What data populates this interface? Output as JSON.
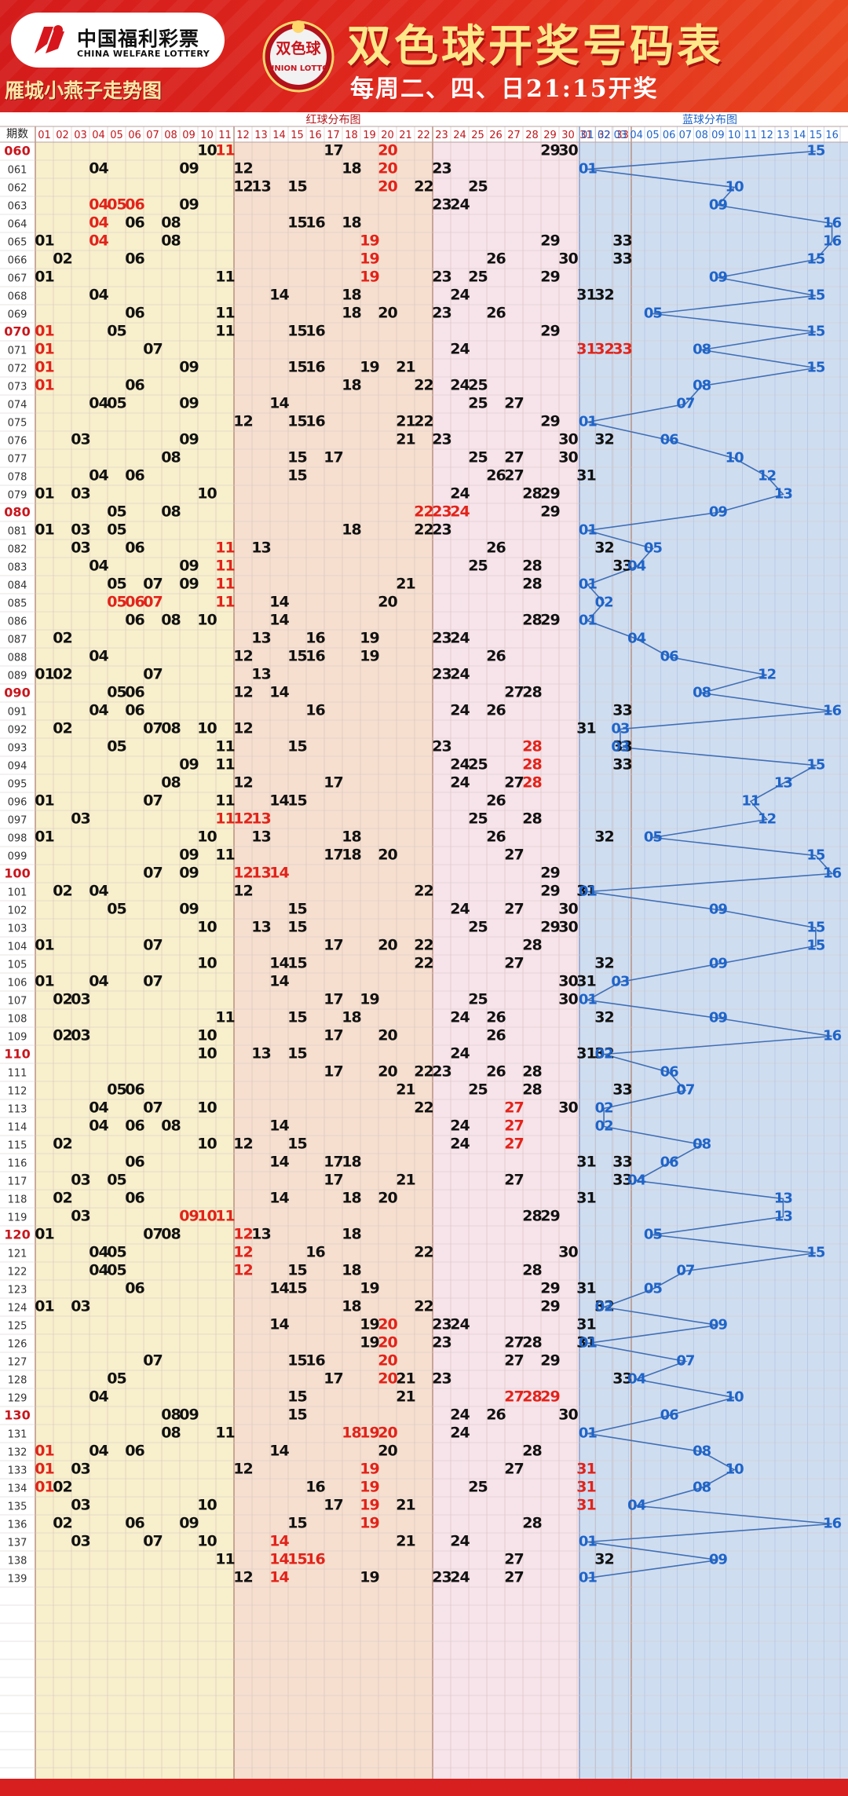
{
  "header": {
    "logo_cn": "中国福利彩票",
    "logo_en": "CHINA WELFARE LOTTERY",
    "ball_logo_cn": "双色球",
    "ball_logo_en": "UNION LOTTO",
    "title": "双色球开奖号码表",
    "schedule": "每周二、四、日21:15开奖",
    "subtitle": "雁城小燕子走势图"
  },
  "colors": {
    "header_red": "#d41b1b",
    "title_gold": "#ffe88a",
    "red_zone_1": "#f8efcc",
    "red_zone_2": "#f6dfcf",
    "red_zone_3": "#f7e3ea",
    "blue_zone": "#cfddf0",
    "blue_number": "#1f64c8",
    "repeat_red": "#e2231a",
    "number_black": "#111111"
  },
  "chart_data": {
    "type": "table",
    "period_header": "期数",
    "red_header": "红球分布图",
    "blue_header": "蓝球分布图",
    "red_columns": [
      "01",
      "02",
      "03",
      "04",
      "05",
      "06",
      "07",
      "08",
      "09",
      "10",
      "11",
      "12",
      "13",
      "14",
      "15",
      "16",
      "17",
      "18",
      "19",
      "20",
      "21",
      "22",
      "23",
      "24",
      "25",
      "26",
      "27",
      "28",
      "29",
      "30",
      "31",
      "32",
      "33"
    ],
    "blue_columns": [
      "01",
      "02",
      "03",
      "04",
      "05",
      "06",
      "07",
      "08",
      "09",
      "10",
      "11",
      "12",
      "13",
      "14",
      "15",
      "16"
    ],
    "rows": [
      {
        "period": "060",
        "red": [
          10,
          11,
          17,
          20,
          29,
          30
        ],
        "hl": [
          11,
          20
        ],
        "blue": 15
      },
      {
        "period": "061",
        "red": [
          4,
          9,
          12,
          18,
          20,
          23
        ],
        "hl": [
          20
        ],
        "blue": 1
      },
      {
        "period": "062",
        "red": [
          12,
          13,
          15,
          20,
          22,
          25
        ],
        "hl": [
          20
        ],
        "blue": 10
      },
      {
        "period": "063",
        "red": [
          4,
          5,
          6,
          9,
          23,
          24
        ],
        "hl": [
          4,
          5,
          6
        ],
        "blue": 9
      },
      {
        "period": "064",
        "red": [
          4,
          6,
          8,
          15,
          16,
          18
        ],
        "hl": [
          4
        ],
        "blue": 16
      },
      {
        "period": "065",
        "red": [
          1,
          4,
          8,
          19,
          29,
          33
        ],
        "hl": [
          4,
          19
        ],
        "blue": 16
      },
      {
        "period": "066",
        "red": [
          2,
          6,
          19,
          26,
          30,
          33
        ],
        "hl": [
          19
        ],
        "blue": 15
      },
      {
        "period": "067",
        "red": [
          1,
          11,
          19,
          23,
          25,
          29
        ],
        "hl": [
          19
        ],
        "blue": 9
      },
      {
        "period": "068",
        "red": [
          4,
          14,
          18,
          24,
          31,
          32
        ],
        "hl": [],
        "blue": 15
      },
      {
        "period": "069",
        "red": [
          6,
          11,
          18,
          20,
          23,
          26
        ],
        "hl": [],
        "blue": 5
      },
      {
        "period": "070",
        "red": [
          1,
          5,
          11,
          15,
          16,
          29
        ],
        "hl": [
          1
        ],
        "blue": 15
      },
      {
        "period": "071",
        "red": [
          1,
          7,
          24,
          31,
          32,
          33
        ],
        "hl": [
          1,
          31,
          32,
          33
        ],
        "blue": 8
      },
      {
        "period": "072",
        "red": [
          1,
          9,
          15,
          16,
          19,
          21
        ],
        "hl": [
          1
        ],
        "blue": 15
      },
      {
        "period": "073",
        "red": [
          1,
          6,
          18,
          22,
          24,
          25
        ],
        "hl": [
          1
        ],
        "blue": 8
      },
      {
        "period": "074",
        "red": [
          4,
          5,
          9,
          14,
          25,
          27
        ],
        "hl": [],
        "blue": 7
      },
      {
        "period": "075",
        "red": [
          12,
          15,
          16,
          21,
          22,
          29
        ],
        "hl": [],
        "blue": 1
      },
      {
        "period": "076",
        "red": [
          3,
          9,
          21,
          23,
          30,
          32
        ],
        "hl": [],
        "blue": 6
      },
      {
        "period": "077",
        "red": [
          8,
          15,
          17,
          25,
          27,
          30
        ],
        "hl": [],
        "blue": 10
      },
      {
        "period": "078",
        "red": [
          4,
          6,
          15,
          26,
          27,
          31
        ],
        "hl": [],
        "blue": 12
      },
      {
        "period": "079",
        "red": [
          1,
          3,
          10,
          24,
          28,
          29
        ],
        "hl": [],
        "blue": 13
      },
      {
        "period": "080",
        "red": [
          5,
          8,
          22,
          23,
          24,
          29
        ],
        "hl": [
          22,
          23,
          24
        ],
        "blue": 9
      },
      {
        "period": "081",
        "red": [
          1,
          3,
          5,
          18,
          22,
          23
        ],
        "hl": [],
        "blue": 1
      },
      {
        "period": "082",
        "red": [
          3,
          6,
          11,
          13,
          26,
          32
        ],
        "hl": [
          11
        ],
        "blue": 5
      },
      {
        "period": "083",
        "red": [
          4,
          9,
          11,
          25,
          28,
          33
        ],
        "hl": [
          11
        ],
        "blue": 4
      },
      {
        "period": "084",
        "red": [
          5,
          7,
          9,
          11,
          21,
          28
        ],
        "hl": [
          11
        ],
        "blue": 1
      },
      {
        "period": "085",
        "red": [
          5,
          6,
          7,
          11,
          14,
          20
        ],
        "hl": [
          5,
          6,
          7,
          11
        ],
        "blue": 2
      },
      {
        "period": "086",
        "red": [
          6,
          8,
          10,
          14,
          28,
          29
        ],
        "hl": [],
        "blue": 1
      },
      {
        "period": "087",
        "red": [
          2,
          13,
          16,
          19,
          23,
          24
        ],
        "hl": [],
        "blue": 4
      },
      {
        "period": "088",
        "red": [
          4,
          12,
          15,
          16,
          19,
          26
        ],
        "hl": [],
        "blue": 6
      },
      {
        "period": "089",
        "red": [
          1,
          2,
          7,
          13,
          23,
          24
        ],
        "hl": [],
        "blue": 12
      },
      {
        "period": "090",
        "red": [
          5,
          6,
          12,
          14,
          27,
          28
        ],
        "hl": [],
        "blue": 8
      },
      {
        "period": "091",
        "red": [
          4,
          6,
          16,
          24,
          26,
          33
        ],
        "hl": [],
        "blue": 16
      },
      {
        "period": "092",
        "red": [
          2,
          7,
          8,
          10,
          12,
          31
        ],
        "hl": [],
        "blue": 3
      },
      {
        "period": "093",
        "red": [
          5,
          11,
          15,
          23,
          28,
          33
        ],
        "hl": [
          28
        ],
        "blue": 3
      },
      {
        "period": "094",
        "red": [
          9,
          11,
          24,
          25,
          28,
          33
        ],
        "hl": [
          28
        ],
        "blue": 15
      },
      {
        "period": "095",
        "red": [
          8,
          12,
          17,
          24,
          27,
          28
        ],
        "hl": [
          28
        ],
        "blue": 13
      },
      {
        "period": "096",
        "red": [
          1,
          7,
          11,
          14,
          15,
          26
        ],
        "hl": [],
        "blue": 11
      },
      {
        "period": "097",
        "red": [
          3,
          11,
          12,
          13,
          25,
          28
        ],
        "hl": [
          11,
          12,
          13
        ],
        "blue": 12
      },
      {
        "period": "098",
        "red": [
          1,
          10,
          13,
          18,
          26,
          32
        ],
        "hl": [],
        "blue": 5
      },
      {
        "period": "099",
        "red": [
          9,
          11,
          17,
          18,
          20,
          27
        ],
        "hl": [],
        "blue": 15
      },
      {
        "period": "100",
        "red": [
          7,
          9,
          12,
          13,
          14,
          29
        ],
        "hl": [
          12,
          13,
          14
        ],
        "blue": 16
      },
      {
        "period": "101",
        "red": [
          2,
          4,
          12,
          22,
          29,
          31
        ],
        "hl": [],
        "blue": 1
      },
      {
        "period": "102",
        "red": [
          5,
          9,
          15,
          24,
          27,
          30
        ],
        "hl": [],
        "blue": 9
      },
      {
        "period": "103",
        "red": [
          10,
          13,
          15,
          25,
          29,
          30
        ],
        "hl": [],
        "blue": 15
      },
      {
        "period": "104",
        "red": [
          1,
          7,
          17,
          20,
          22,
          28
        ],
        "hl": [],
        "blue": 15
      },
      {
        "period": "105",
        "red": [
          10,
          14,
          15,
          22,
          27,
          32
        ],
        "hl": [],
        "blue": 9
      },
      {
        "period": "106",
        "red": [
          1,
          4,
          7,
          14,
          30,
          31
        ],
        "hl": [],
        "blue": 3
      },
      {
        "period": "107",
        "red": [
          2,
          3,
          17,
          19,
          25,
          30
        ],
        "hl": [],
        "blue": 1
      },
      {
        "period": "108",
        "red": [
          11,
          15,
          18,
          24,
          26,
          32
        ],
        "hl": [],
        "blue": 9
      },
      {
        "period": "109",
        "red": [
          2,
          3,
          10,
          17,
          20,
          26
        ],
        "hl": [],
        "blue": 16
      },
      {
        "period": "110",
        "red": [
          10,
          13,
          15,
          24,
          31,
          32
        ],
        "hl": [],
        "blue": 2
      },
      {
        "period": "111",
        "red": [
          17,
          20,
          22,
          23,
          26,
          28
        ],
        "hl": [],
        "blue": 6
      },
      {
        "period": "112",
        "red": [
          5,
          6,
          21,
          25,
          28,
          33
        ],
        "hl": [],
        "blue": 7
      },
      {
        "period": "113",
        "red": [
          4,
          7,
          10,
          22,
          27,
          30
        ],
        "hl": [
          27
        ],
        "blue": 2
      },
      {
        "period": "114",
        "red": [
          4,
          6,
          8,
          14,
          24,
          27
        ],
        "hl": [
          27
        ],
        "blue": 2
      },
      {
        "period": "115",
        "red": [
          2,
          10,
          12,
          15,
          24,
          27
        ],
        "hl": [
          27
        ],
        "blue": 8
      },
      {
        "period": "116",
        "red": [
          6,
          14,
          17,
          18,
          31,
          33
        ],
        "hl": [],
        "blue": 6
      },
      {
        "period": "117",
        "red": [
          3,
          5,
          17,
          21,
          27,
          33
        ],
        "hl": [],
        "blue": 4
      },
      {
        "period": "118",
        "red": [
          2,
          6,
          14,
          18,
          20,
          31
        ],
        "hl": [],
        "blue": 13
      },
      {
        "period": "119",
        "red": [
          3,
          9,
          10,
          11,
          28,
          29
        ],
        "hl": [
          9,
          10,
          11
        ],
        "blue": 13
      },
      {
        "period": "120",
        "red": [
          1,
          7,
          8,
          12,
          13,
          18
        ],
        "hl": [
          12
        ],
        "blue": 5
      },
      {
        "period": "121",
        "red": [
          4,
          5,
          12,
          16,
          22,
          30
        ],
        "hl": [
          12
        ],
        "blue": 15
      },
      {
        "period": "122",
        "red": [
          4,
          5,
          12,
          15,
          18,
          28
        ],
        "hl": [
          12
        ],
        "blue": 7
      },
      {
        "period": "123",
        "red": [
          6,
          14,
          15,
          19,
          29,
          31
        ],
        "hl": [],
        "blue": 5
      },
      {
        "period": "124",
        "red": [
          1,
          3,
          18,
          22,
          29,
          32
        ],
        "hl": [],
        "blue": 2
      },
      {
        "period": "125",
        "red": [
          14,
          19,
          20,
          23,
          24,
          31
        ],
        "hl": [
          20
        ],
        "blue": 9
      },
      {
        "period": "126",
        "red": [
          19,
          20,
          23,
          27,
          28,
          31
        ],
        "hl": [
          20
        ],
        "blue": 1
      },
      {
        "period": "127",
        "red": [
          7,
          15,
          16,
          20,
          27,
          29
        ],
        "hl": [
          20
        ],
        "blue": 7
      },
      {
        "period": "128",
        "red": [
          5,
          17,
          20,
          21,
          23,
          33
        ],
        "hl": [
          20
        ],
        "blue": 4
      },
      {
        "period": "129",
        "red": [
          4,
          15,
          21,
          27,
          28,
          29
        ],
        "hl": [
          27,
          28,
          29
        ],
        "blue": 10
      },
      {
        "period": "130",
        "red": [
          8,
          9,
          15,
          24,
          26,
          30
        ],
        "hl": [],
        "blue": 6
      },
      {
        "period": "131",
        "red": [
          8,
          11,
          18,
          19,
          20,
          24
        ],
        "hl": [
          18,
          19,
          20
        ],
        "blue": 1
      },
      {
        "period": "132",
        "red": [
          1,
          4,
          6,
          14,
          20,
          28
        ],
        "hl": [
          1
        ],
        "blue": 8
      },
      {
        "period": "133",
        "red": [
          1,
          3,
          12,
          19,
          27,
          31
        ],
        "hl": [
          1,
          19,
          31
        ],
        "blue": 10
      },
      {
        "period": "134",
        "red": [
          1,
          2,
          16,
          19,
          25,
          31
        ],
        "hl": [
          1,
          19,
          31
        ],
        "blue": 8
      },
      {
        "period": "135",
        "red": [
          3,
          10,
          17,
          19,
          21,
          31
        ],
        "hl": [
          19,
          31
        ],
        "blue": 4
      },
      {
        "period": "136",
        "red": [
          2,
          6,
          9,
          15,
          19,
          28
        ],
        "hl": [
          19
        ],
        "blue": 16
      },
      {
        "period": "137",
        "red": [
          3,
          7,
          10,
          14,
          21,
          24
        ],
        "hl": [
          14
        ],
        "blue": 1
      },
      {
        "period": "138",
        "red": [
          11,
          14,
          15,
          16,
          27,
          32
        ],
        "hl": [
          14,
          15,
          16
        ],
        "blue": 9
      },
      {
        "period": "139",
        "red": [
          12,
          14,
          19,
          23,
          24,
          27
        ],
        "hl": [
          14
        ],
        "blue": 1
      }
    ]
  }
}
